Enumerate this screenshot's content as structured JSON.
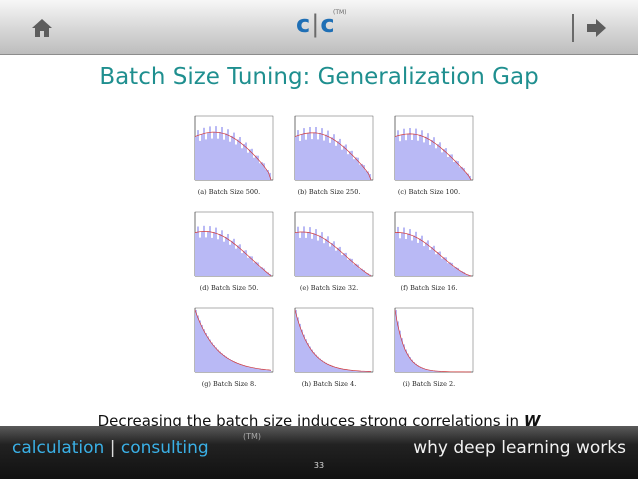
{
  "header": {
    "logo_left": "c",
    "logo_sep": "|",
    "logo_right": "c",
    "logo_tm": "(TM)",
    "home_icon": "home-icon",
    "next_icon": "arrow-right-icon"
  },
  "slide": {
    "title": "Batch Size Tuning:  Generalization Gap",
    "caption_text": "Decreasing the batch size induces strong correlations in ",
    "caption_var": "W"
  },
  "figure": {
    "panels": [
      {
        "label": "(a) Batch Size 500."
      },
      {
        "label": "(b) Batch Size 250."
      },
      {
        "label": "(c) Batch Size 100."
      },
      {
        "label": "(d) Batch Size 50."
      },
      {
        "label": "(e) Batch Size 32."
      },
      {
        "label": "(f) Batch Size 16."
      },
      {
        "label": "(g) Batch Size 8."
      },
      {
        "label": "(h) Batch Size 4."
      },
      {
        "label": "(i) Batch Size 2."
      }
    ]
  },
  "footer": {
    "left_a": "calculation",
    "sep": "|",
    "left_b": "consulting",
    "tm": "(TM)",
    "right": "why deep learning works",
    "page": "33"
  },
  "colors": {
    "accent_teal": "#1f8f8f",
    "logo_blue": "#1f6fb5",
    "footer_blue": "#3ab0e6",
    "hist_fill": "#b9b9f5",
    "fit_line": "#d23a3a"
  }
}
